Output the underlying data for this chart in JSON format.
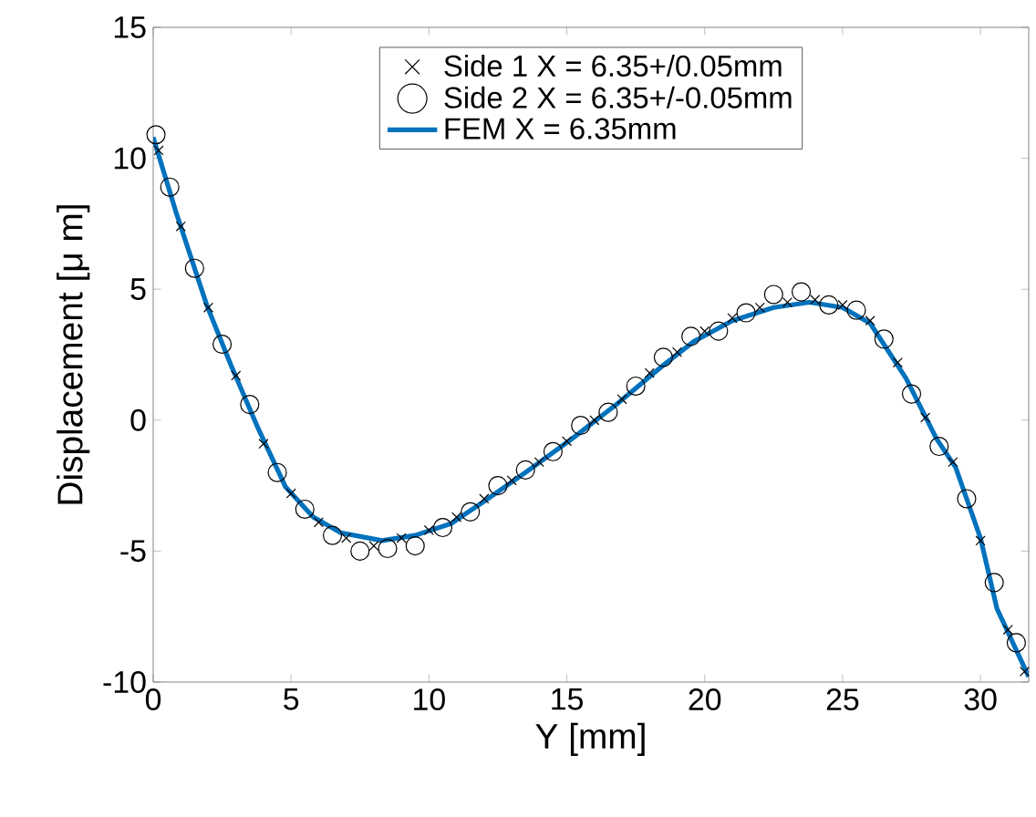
{
  "chart_data": {
    "type": "scatter",
    "xlabel": "Y [mm]",
    "ylabel": "Displacement [μ m]",
    "xlim": [
      0,
      31.75
    ],
    "ylim": [
      -10,
      15
    ],
    "xticks": [
      0,
      5,
      10,
      15,
      20,
      25,
      30
    ],
    "yticks": [
      -10,
      -5,
      0,
      5,
      10,
      15
    ],
    "legend": "top",
    "grid": false,
    "series": [
      {
        "name": "Side 1 X = 6.35+/0.05mm",
        "marker": "cross",
        "color": "#000000",
        "x": [
          0.2,
          1,
          2,
          3,
          4,
          5,
          6,
          7,
          8,
          9,
          10,
          11,
          12,
          13,
          14,
          15,
          16,
          17,
          18,
          19,
          20,
          21,
          22,
          23,
          24,
          25,
          26,
          27,
          28,
          29,
          30,
          31,
          31.6
        ],
        "values": [
          10.3,
          7.4,
          4.3,
          1.7,
          -0.9,
          -2.8,
          -3.9,
          -4.5,
          -4.8,
          -4.5,
          -4.2,
          -3.7,
          -3.0,
          -2.3,
          -1.6,
          -0.8,
          0.0,
          0.8,
          1.8,
          2.6,
          3.4,
          3.9,
          4.3,
          4.5,
          4.6,
          4.4,
          3.8,
          2.2,
          0.1,
          -1.6,
          -4.6,
          -8.0,
          -9.6
        ]
      },
      {
        "name": "Side 2 X = 6.35+/-0.05mm",
        "marker": "circle",
        "color": "#000000",
        "x": [
          0.1,
          0.6,
          1.5,
          2.5,
          3.5,
          4.5,
          5.5,
          6.5,
          7.5,
          8.5,
          9.5,
          10.5,
          11.5,
          12.5,
          13.5,
          14.5,
          15.5,
          16.5,
          17.5,
          18.5,
          19.5,
          20.5,
          21.5,
          22.5,
          23.5,
          24.5,
          25.5,
          26.5,
          27.5,
          28.5,
          29.5,
          30.5,
          31.3
        ],
        "values": [
          10.9,
          8.9,
          5.8,
          2.9,
          0.6,
          -2.0,
          -3.4,
          -4.4,
          -5.0,
          -4.9,
          -4.8,
          -4.1,
          -3.5,
          -2.5,
          -1.9,
          -1.2,
          -0.2,
          0.3,
          1.3,
          2.4,
          3.2,
          3.4,
          4.1,
          4.8,
          4.9,
          4.4,
          4.2,
          3.1,
          1.0,
          -1.0,
          -3.0,
          -6.2,
          -8.5
        ]
      },
      {
        "name": "FEM X = 6.35mm",
        "type": "line",
        "marker": "none",
        "line_style": "solid",
        "color": "#0072bd",
        "x": [
          0,
          0.84,
          1.94,
          2.82,
          3.8,
          4.8,
          5.8,
          6.8,
          8.3,
          9.5,
          10.8,
          12,
          13.5,
          15.2,
          16.8,
          18.5,
          19.6,
          21,
          22.5,
          23.8,
          25,
          26,
          27.3,
          28.4,
          29.1,
          30,
          30.6,
          31.75
        ],
        "values": [
          10.8,
          7.9,
          4.4,
          2.1,
          -0.3,
          -2.55,
          -3.7,
          -4.3,
          -4.6,
          -4.4,
          -3.95,
          -3.1,
          -2.0,
          -0.7,
          0.6,
          2.1,
          3.0,
          3.8,
          4.3,
          4.5,
          4.3,
          3.7,
          1.6,
          -0.7,
          -1.8,
          -4.5,
          -7.2,
          -9.8
        ]
      }
    ]
  }
}
